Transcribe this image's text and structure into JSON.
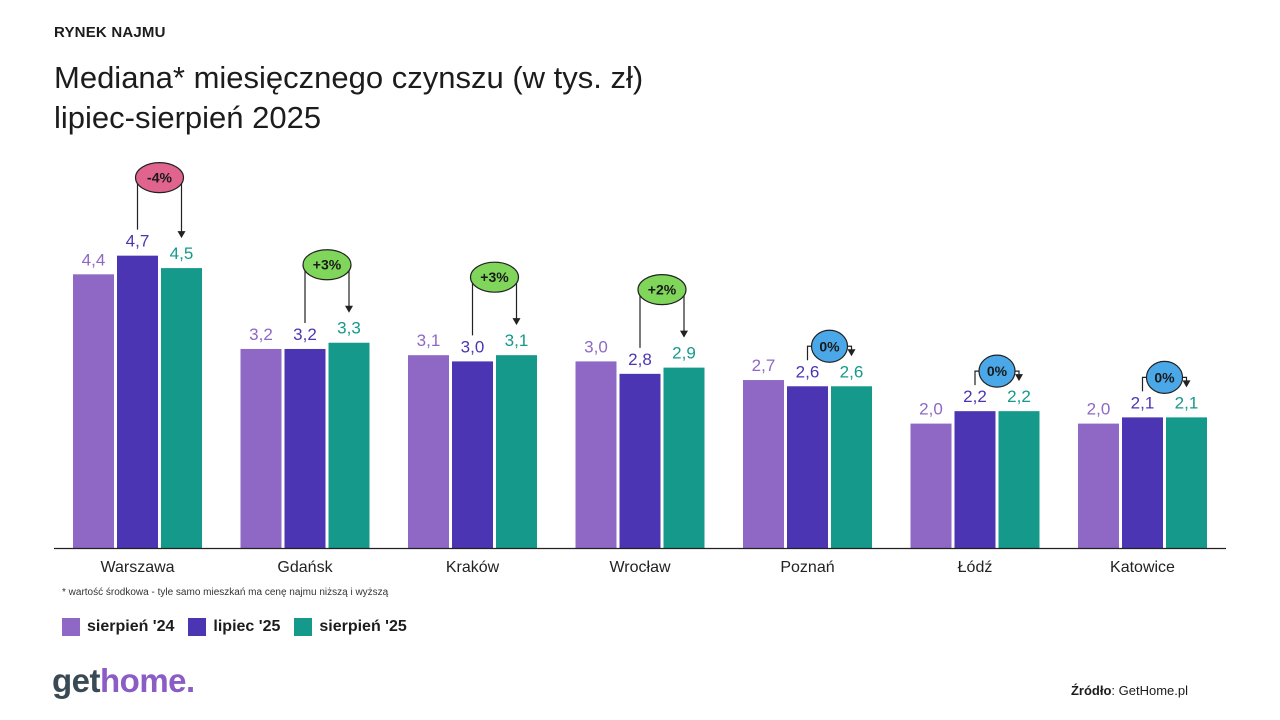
{
  "kicker": "RYNEK NAJMU",
  "title": {
    "line1": "Mediana* miesięcznego czynszu (w tys. zł)",
    "line2": "lipiec-sierpień 2025"
  },
  "footnote": "* wartość środkowa  - tyle samo mieszkań ma cenę najmu niższą i wyższą",
  "logo": {
    "part1": "get",
    "part2": "home."
  },
  "source": {
    "label": "Źródło",
    "value": ": GetHome.pl"
  },
  "colors": {
    "series1": "#8e68c4",
    "series2": "#4c35b3",
    "series3": "#14998a",
    "badge_negative": "#e0648e",
    "badge_positive": "#7fd65a",
    "badge_zero": "#4aa8e8"
  },
  "chart_data": {
    "type": "bar",
    "title": "Mediana* miesięcznego czynszu (w tys. zł)",
    "xlabel": "",
    "ylabel": "",
    "ylim": [
      0,
      5.0
    ],
    "categories": [
      "Warszawa",
      "Gdańsk",
      "Kraków",
      "Wrocław",
      "Poznań",
      "Łódź",
      "Katowice"
    ],
    "series": [
      {
        "name": "sierpień '24",
        "values": [
          4.4,
          3.2,
          3.1,
          3.0,
          2.7,
          2.0,
          2.0
        ],
        "labels": [
          "4,4",
          "3,2",
          "3,1",
          "3,0",
          "2,7",
          "2,0",
          "2,0"
        ]
      },
      {
        "name": "lipiec '25",
        "values": [
          4.7,
          3.2,
          3.0,
          2.8,
          2.6,
          2.2,
          2.1
        ],
        "labels": [
          "4,7",
          "3,2",
          "3,0",
          "2,8",
          "2,6",
          "2,2",
          "2,1"
        ]
      },
      {
        "name": "sierpień '25",
        "values": [
          4.5,
          3.3,
          3.1,
          2.9,
          2.6,
          2.2,
          2.1
        ],
        "labels": [
          "4,5",
          "3,3",
          "3,1",
          "2,9",
          "2,6",
          "2,2",
          "2,1"
        ]
      }
    ],
    "changes": [
      "-4%",
      "+3%",
      "+3%",
      "+2%",
      "0%",
      "0%",
      "0%"
    ],
    "change_types": [
      "negative",
      "positive",
      "positive",
      "positive",
      "zero",
      "zero",
      "zero"
    ]
  }
}
